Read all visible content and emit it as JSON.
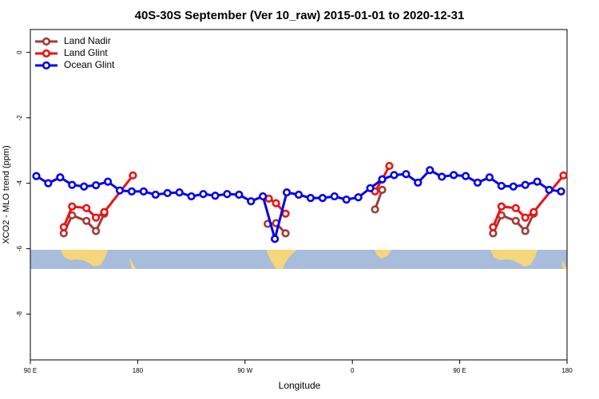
{
  "chart_data": {
    "type": "line",
    "title": "40S-30S September (Ver 10_raw)   2015-01-01 to 2020-12-31",
    "x_label": "Longitude",
    "y_label": "XCO2 - MLO trend (ppm)",
    "xlim": [
      90,
      540
    ],
    "ylim": [
      -9.4,
      0.7
    ],
    "xticks": [
      {
        "value": 90,
        "label": "90 E"
      },
      180,
      {
        "value": 270,
        "label": "90 W"
      },
      {
        "value": 360,
        "label": "0"
      },
      {
        "value": 450,
        "label": "90 E"
      },
      {
        "value": 540,
        "label": "180"
      }
    ],
    "yticks": [
      -8,
      -6,
      -4,
      -2,
      0
    ],
    "legend": "top-left",
    "series": [
      {
        "name": "Land Nadir",
        "color": "#a33a36",
        "x": [
          118,
          125,
          137,
          145,
          152,
          null,
          289,
          296,
          304,
          null,
          379,
          385,
          null,
          478,
          485,
          497,
          505,
          512
        ],
        "values": [
          -5.53,
          -4.98,
          -5.15,
          -5.46,
          -4.93,
          null,
          -5.24,
          -5.22,
          -5.53,
          null,
          -4.8,
          -4.2,
          null,
          -5.53,
          -4.98,
          -5.15,
          -5.46,
          -4.93
        ]
      },
      {
        "name": "Land Glint",
        "color": "#ee1111",
        "x": [
          118,
          125,
          137,
          145,
          152,
          176,
          null,
          290,
          296,
          304,
          null,
          379,
          385,
          391,
          null,
          478,
          485,
          497,
          505,
          512,
          537
        ],
        "values": [
          -5.34,
          -4.71,
          -4.76,
          -5.05,
          -4.88,
          -3.76,
          null,
          -4.47,
          -4.61,
          -4.93,
          null,
          -4.25,
          -3.88,
          -3.47,
          null,
          -5.34,
          -4.71,
          -4.76,
          -5.05,
          -4.88,
          -3.76
        ]
      },
      {
        "name": "Ocean Glint",
        "color": "#0000ee",
        "x": [
          95,
          105,
          115,
          125,
          135,
          145,
          155,
          165,
          175,
          185,
          195,
          205,
          215,
          225,
          235,
          245,
          255,
          265,
          275,
          285,
          295,
          305,
          315,
          325,
          335,
          345,
          355,
          365,
          375,
          385,
          395,
          405,
          415,
          425,
          435,
          445,
          455,
          465,
          475,
          485,
          495,
          505,
          515,
          525,
          535
        ],
        "values": [
          -3.78,
          -4.0,
          -3.82,
          -4.05,
          -4.1,
          -4.06,
          -3.95,
          -4.22,
          -4.25,
          -4.25,
          -4.35,
          -4.3,
          -4.28,
          -4.4,
          -4.33,
          -4.38,
          -4.33,
          -4.35,
          -4.55,
          -4.4,
          -5.7,
          -4.28,
          -4.35,
          -4.45,
          -4.45,
          -4.4,
          -4.5,
          -4.43,
          -4.15,
          -3.88,
          -3.75,
          -3.72,
          -3.98,
          -3.6,
          -3.8,
          -3.75,
          -3.78,
          -3.98,
          -3.82,
          -4.08,
          -4.1,
          -4.05,
          -3.95,
          -4.2,
          -4.25
        ]
      }
    ]
  }
}
